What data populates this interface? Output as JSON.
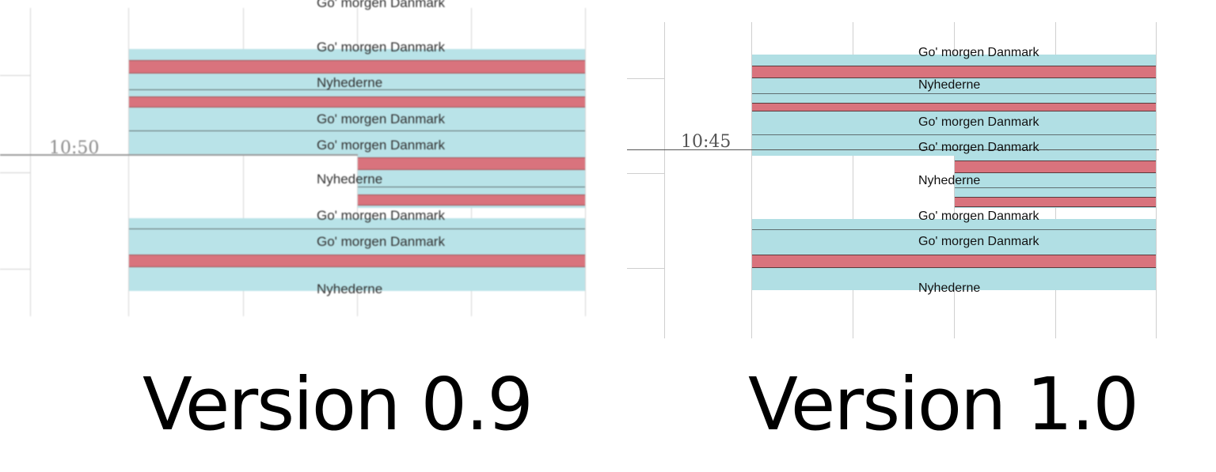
{
  "left": {
    "time_marker": "10:50",
    "programs": [
      "Go' morgen Danmark",
      "Go' morgen Danmark",
      "Nyhederne",
      "Go' morgen Danmark",
      "Go' morgen Danmark",
      "Nyhederne",
      "Go' morgen Danmark",
      "Go' morgen Danmark",
      "Nyhederne"
    ],
    "caption": "Version 0.9"
  },
  "right": {
    "time_marker": "10:45",
    "programs": [
      "Go' morgen Danmark",
      "Nyhederne",
      "Go' morgen Danmark",
      "Go' morgen Danmark",
      "Nyhederne",
      "Go' morgen Danmark",
      "Go' morgen Danmark",
      "Nyhederne"
    ],
    "caption": "Version 1.0"
  },
  "colors": {
    "program_block": "#b1dfe4",
    "commercial_break": "#d9737d"
  }
}
